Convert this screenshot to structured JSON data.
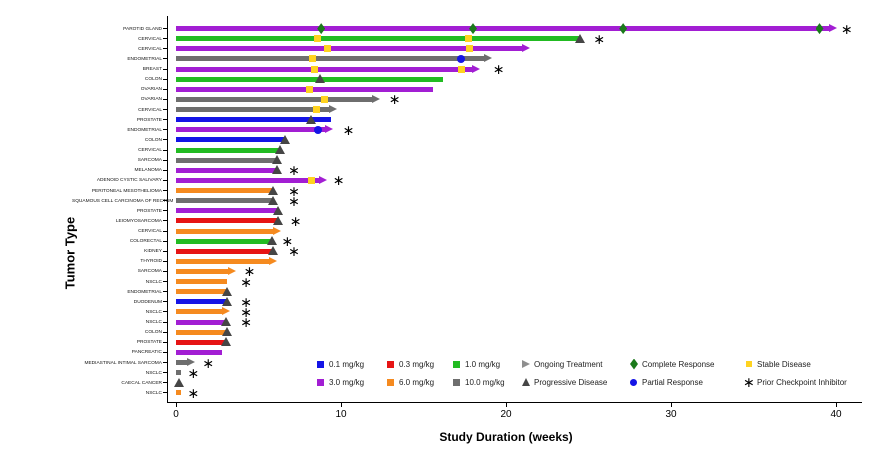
{
  "chart_data": {
    "type": "bar",
    "subtype": "swimmer-plot",
    "title": "",
    "xlabel": "Study Duration (weeks)",
    "ylabel": "Tumor Type",
    "xlim": [
      0,
      41
    ],
    "x_ticks": [
      0,
      10,
      20,
      30,
      40
    ],
    "grid": false,
    "legend_position": "bottom",
    "dose_colors": {
      "0.1 mg/kg": "#1414E6",
      "0.3 mg/kg": "#E61414",
      "1.0 mg/kg": "#22BB22",
      "3.0 mg/kg": "#A21ED3",
      "6.0 mg/kg": "#F58A1F",
      "10.0 mg/kg": "#6E6E6E"
    },
    "marker_colors": {
      "cr": "#1B7A1B",
      "sd": "#FFD320",
      "pr": "#1414E6",
      "pd": "#464646",
      "ongoing_arrow": "#8E8E8E",
      "asterisk": "#000000"
    },
    "marker_meanings": {
      "cr": "Complete Response",
      "sd": "Stable Disease",
      "pr": "Partial Response",
      "pd": "Progressive Disease",
      "arrow": "Ongoing Treatment",
      "asterisk": "Prior Checkpoint Inhibitor"
    },
    "rows": [
      {
        "label": "PAROTID GLAND",
        "dose": "3.0 mg/kg",
        "duration_weeks": 39.8,
        "ongoing": true,
        "markers": [
          {
            "type": "cr",
            "week": 8.8
          },
          {
            "type": "cr",
            "week": 18.0
          },
          {
            "type": "cr",
            "week": 27.1
          },
          {
            "type": "cr",
            "week": 39.0
          }
        ],
        "prior_ci_week": 40.6
      },
      {
        "label": "CERVICAL",
        "dose": "1.0 mg/kg",
        "duration_weeks": 24.5,
        "ongoing": false,
        "markers": [
          {
            "type": "sd",
            "week": 8.6
          },
          {
            "type": "sd",
            "week": 17.7
          },
          {
            "type": "pd",
            "week": 24.5
          }
        ],
        "prior_ci_week": 25.6
      },
      {
        "label": "CERVICAL",
        "dose": "3.0 mg/kg",
        "duration_weeks": 21.2,
        "ongoing": true,
        "markers": [
          {
            "type": "sd",
            "week": 9.2
          },
          {
            "type": "sd",
            "week": 17.8
          }
        ],
        "prior_ci_week": null
      },
      {
        "label": "ENDOMETRIAL",
        "dose": "10.0 mg/kg",
        "duration_weeks": 18.9,
        "ongoing": true,
        "markers": [
          {
            "type": "sd",
            "week": 8.3
          },
          {
            "type": "pr",
            "week": 17.3
          }
        ],
        "prior_ci_week": null
      },
      {
        "label": "BREAST",
        "dose": "3.0 mg/kg",
        "duration_weeks": 18.2,
        "ongoing": true,
        "markers": [
          {
            "type": "sd",
            "week": 8.4
          },
          {
            "type": "sd",
            "week": 17.3
          }
        ],
        "prior_ci_week": 19.5
      },
      {
        "label": "COLON",
        "dose": "1.0 mg/kg",
        "duration_weeks": 16.2,
        "ongoing": false,
        "markers": [
          {
            "type": "pd",
            "week": 8.7
          }
        ],
        "prior_ci_week": null
      },
      {
        "label": "OVARIAN",
        "dose": "3.0 mg/kg",
        "duration_weeks": 15.6,
        "ongoing": false,
        "markers": [
          {
            "type": "sd",
            "week": 8.1
          }
        ],
        "prior_ci_week": null
      },
      {
        "label": "OVARIAN",
        "dose": "10.0 mg/kg",
        "duration_weeks": 12.1,
        "ongoing": true,
        "markers": [
          {
            "type": "sd",
            "week": 9.0
          }
        ],
        "prior_ci_week": 13.2
      },
      {
        "label": "CERVICAL",
        "dose": "10.0 mg/kg",
        "duration_weeks": 9.5,
        "ongoing": true,
        "markers": [
          {
            "type": "sd",
            "week": 8.5
          }
        ],
        "prior_ci_week": null
      },
      {
        "label": "PROSTATE",
        "dose": "0.1 mg/kg",
        "duration_weeks": 9.4,
        "ongoing": false,
        "markers": [
          {
            "type": "pd",
            "week": 8.2
          }
        ],
        "prior_ci_week": null
      },
      {
        "label": "ENDOMETRIAL",
        "dose": "3.0 mg/kg",
        "duration_weeks": 9.3,
        "ongoing": true,
        "markers": [
          {
            "type": "pr",
            "week": 8.6
          }
        ],
        "prior_ci_week": 10.4
      },
      {
        "label": "COLON",
        "dose": "0.1 mg/kg",
        "duration_weeks": 6.6,
        "ongoing": false,
        "markers": [
          {
            "type": "pd",
            "week": 6.6
          }
        ],
        "prior_ci_week": null
      },
      {
        "label": "CERVICAL",
        "dose": "1.0 mg/kg",
        "duration_weeks": 6.3,
        "ongoing": false,
        "markers": [
          {
            "type": "pd",
            "week": 6.3
          }
        ],
        "prior_ci_week": null
      },
      {
        "label": "SARCOMA",
        "dose": "10.0 mg/kg",
        "duration_weeks": 6.1,
        "ongoing": false,
        "markers": [
          {
            "type": "pd",
            "week": 6.1
          }
        ],
        "prior_ci_week": null
      },
      {
        "label": "MELANOMA",
        "dose": "3.0 mg/kg",
        "duration_weeks": 6.1,
        "ongoing": false,
        "markers": [
          {
            "type": "pd",
            "week": 6.1
          }
        ],
        "prior_ci_week": 7.1
      },
      {
        "label": "ADENOID CYSTIC SALIVARY",
        "dose": "3.0 mg/kg",
        "duration_weeks": 8.9,
        "ongoing": true,
        "markers": [
          {
            "type": "sd",
            "week": 8.2
          }
        ],
        "prior_ci_week": 9.8
      },
      {
        "label": "PERITONEAL MESOTHELIOMA",
        "dose": "6.0 mg/kg",
        "duration_weeks": 5.9,
        "ongoing": false,
        "markers": [
          {
            "type": "pd",
            "week": 5.9
          }
        ],
        "prior_ci_week": 7.1
      },
      {
        "label": "SQUAMOUS CELL CARCINOMA OF RECTUM",
        "dose": "10.0 mg/kg",
        "duration_weeks": 5.9,
        "ongoing": false,
        "markers": [
          {
            "type": "pd",
            "week": 5.9
          }
        ],
        "prior_ci_week": 7.1
      },
      {
        "label": "PROSTATE",
        "dose": "3.0 mg/kg",
        "duration_weeks": 6.2,
        "ongoing": false,
        "markers": [
          {
            "type": "pd",
            "week": 6.2
          }
        ],
        "prior_ci_week": null
      },
      {
        "label": "LEIOMYOSARCOMA",
        "dose": "0.3 mg/kg",
        "duration_weeks": 6.2,
        "ongoing": false,
        "markers": [
          {
            "type": "pd",
            "week": 6.2
          }
        ],
        "prior_ci_week": 7.2
      },
      {
        "label": "CERVICAL",
        "dose": "6.0 mg/kg",
        "duration_weeks": 6.1,
        "ongoing": true,
        "markers": [],
        "prior_ci_week": null
      },
      {
        "label": "COLORECTAL",
        "dose": "1.0 mg/kg",
        "duration_weeks": 5.8,
        "ongoing": false,
        "markers": [
          {
            "type": "pd",
            "week": 5.8
          }
        ],
        "prior_ci_week": 6.7
      },
      {
        "label": "KIDNEY",
        "dose": "0.3 mg/kg",
        "duration_weeks": 5.9,
        "ongoing": false,
        "markers": [
          {
            "type": "pd",
            "week": 5.9
          }
        ],
        "prior_ci_week": 7.1
      },
      {
        "label": "THYROID",
        "dose": "6.0 mg/kg",
        "duration_weeks": 5.9,
        "ongoing": true,
        "markers": [],
        "prior_ci_week": null
      },
      {
        "label": "SARCOMA",
        "dose": "6.0 mg/kg",
        "duration_weeks": 3.4,
        "ongoing": true,
        "markers": [],
        "prior_ci_week": 4.4
      },
      {
        "label": "NSCLC",
        "dose": "6.0 mg/kg",
        "duration_weeks": 3.1,
        "ongoing": false,
        "markers": [],
        "prior_ci_week": 4.2
      },
      {
        "label": "ENDOMETRIAL",
        "dose": "6.0 mg/kg",
        "duration_weeks": 3.1,
        "ongoing": false,
        "markers": [
          {
            "type": "pd",
            "week": 3.1
          }
        ],
        "prior_ci_week": null
      },
      {
        "label": "DUODENUM",
        "dose": "0.1 mg/kg",
        "duration_weeks": 3.1,
        "ongoing": false,
        "markers": [
          {
            "type": "pd",
            "week": 3.1
          }
        ],
        "prior_ci_week": 4.2
      },
      {
        "label": "NSCLC",
        "dose": "6.0 mg/kg",
        "duration_weeks": 3.0,
        "ongoing": true,
        "markers": [],
        "prior_ci_week": 4.2
      },
      {
        "label": "NSCLC",
        "dose": "3.0 mg/kg",
        "duration_weeks": 3.0,
        "ongoing": false,
        "markers": [
          {
            "type": "pd",
            "week": 3.0
          }
        ],
        "prior_ci_week": 4.2
      },
      {
        "label": "COLON",
        "dose": "6.0 mg/kg",
        "duration_weeks": 3.1,
        "ongoing": false,
        "markers": [
          {
            "type": "pd",
            "week": 3.1
          }
        ],
        "prior_ci_week": null
      },
      {
        "label": "PROSTATE",
        "dose": "0.3 mg/kg",
        "duration_weeks": 3.0,
        "ongoing": false,
        "markers": [
          {
            "type": "pd",
            "week": 3.0
          }
        ],
        "prior_ci_week": null
      },
      {
        "label": "PANCREATIC",
        "dose": "3.0 mg/kg",
        "duration_weeks": 2.8,
        "ongoing": false,
        "markers": [],
        "prior_ci_week": null
      },
      {
        "label": "MEDIASTINAL INTIMAL SARCOMA",
        "dose": "10.0 mg/kg",
        "duration_weeks": 0.9,
        "ongoing": true,
        "markers": [],
        "prior_ci_week": 1.9
      },
      {
        "label": "NSCLC",
        "dose": "10.0 mg/kg",
        "duration_weeks": 0.3,
        "ongoing": false,
        "markers": [],
        "prior_ci_week": 1.0
      },
      {
        "label": "CAECAL CANCER",
        "dose": null,
        "duration_weeks": 0,
        "ongoing": false,
        "markers": [
          {
            "type": "pd",
            "week": 0.2
          }
        ],
        "prior_ci_week": null
      },
      {
        "label": "NSCLC",
        "dose": "6.0 mg/kg",
        "duration_weeks": 0.3,
        "ongoing": false,
        "markers": [],
        "prior_ci_week": 1.0
      }
    ],
    "legend": {
      "rows": [
        [
          {
            "swatch": "square",
            "color": "#1414E6",
            "label": "0.1 mg/kg"
          },
          {
            "swatch": "square",
            "color": "#E61414",
            "label": "0.3 mg/kg"
          },
          {
            "swatch": "square",
            "color": "#22BB22",
            "label": "1.0 mg/kg"
          },
          {
            "swatch": "arrow",
            "color": "#8E8E8E",
            "label": "Ongoing Treatment"
          },
          {
            "swatch": "diamond",
            "color": "#1B7A1B",
            "label": "Complete Response"
          },
          {
            "swatch": "square-small",
            "color": "#FFD320",
            "label": "Stable Disease"
          }
        ],
        [
          {
            "swatch": "square",
            "color": "#A21ED3",
            "label": "3.0 mg/kg"
          },
          {
            "swatch": "square",
            "color": "#F58A1F",
            "label": "6.0 mg/kg"
          },
          {
            "swatch": "square",
            "color": "#6E6E6E",
            "label": "10.0 mg/kg"
          },
          {
            "swatch": "triangle",
            "color": "#464646",
            "label": "Progressive Disease"
          },
          {
            "swatch": "circle",
            "color": "#1414E6",
            "label": "Partial Response"
          },
          {
            "swatch": "asterisk",
            "color": "#000000",
            "label": "Prior Checkpoint Inhibitor"
          }
        ]
      ]
    }
  }
}
